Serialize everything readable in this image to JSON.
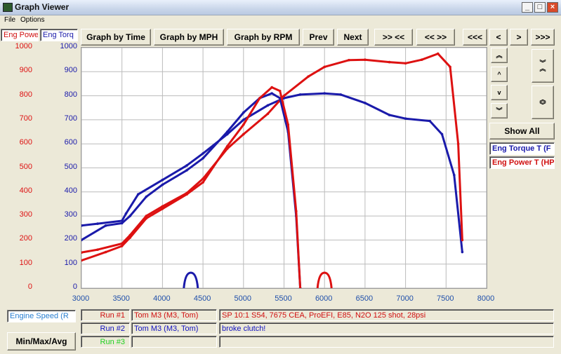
{
  "window": {
    "title": "Graph Viewer",
    "minimize": "_",
    "maximize": "□",
    "close": "×"
  },
  "menu": {
    "file": "File",
    "options": "Options"
  },
  "left_tabs": {
    "power": "Eng Powe",
    "torque": "Eng Torq"
  },
  "toolbar": {
    "graph_time": "Graph by Time",
    "graph_mph": "Graph by MPH",
    "graph_rpm": "Graph by RPM",
    "prev": "Prev",
    "next": "Next",
    "zoom_in": ">> <<",
    "zoom_out": "<< >>",
    "far_left": "<<<",
    "left": "<",
    "right": ">",
    "far_right": ">>>"
  },
  "right_panel": {
    "show_all": "Show All",
    "legend_torque": "Eng Torque T (F",
    "legend_power": "Eng Power T (HP"
  },
  "bottom": {
    "x_channel": "Engine Speed (R",
    "min_max_avg": "Min/Max/Avg",
    "runs": [
      {
        "label": "Run #1",
        "name": "Tom M3 (M3, Tom)",
        "note": "SP 10:1 S54, 7675 CEA, ProEFI, E85, N2O 125 shot, 28psi",
        "color": "#d01010"
      },
      {
        "label": "Run #2",
        "name": "Tom M3 (M3, Tom)",
        "note": "broke clutch!",
        "color": "#1010c0"
      },
      {
        "label": "Run #3",
        "name": "",
        "note": "",
        "color": "#20d020"
      }
    ]
  },
  "colors": {
    "power": "#dd1111",
    "torque": "#1a1aaa",
    "axis_x": "#1f4faa"
  },
  "chart_data": {
    "type": "scatter",
    "xlabel": "",
    "ylabel": "",
    "xlim": [
      3000,
      8000
    ],
    "ylim_power": [
      0,
      1000
    ],
    "ylim_torque": [
      0,
      1000
    ],
    "x_ticks": [
      "3000",
      "3500",
      "4000",
      "4500",
      "5000",
      "5500",
      "6000",
      "6500",
      "7000",
      "7500",
      "8000"
    ],
    "y_ticks_power": [
      "1000",
      "900",
      "800",
      "700",
      "600",
      "500",
      "400",
      "300",
      "200",
      "100",
      "0"
    ],
    "y_ticks_torque": [
      "1000",
      "900",
      "800",
      "700",
      "600",
      "500",
      "400",
      "300",
      "200",
      "100",
      "0"
    ],
    "grid": true,
    "series": [
      {
        "name": "Eng Torque T (F",
        "color": "#1a1aaa",
        "run": 1,
        "x": [
          3000,
          3200,
          3500,
          3550,
          3700,
          4000,
          4300,
          4500,
          4800,
          5000,
          5300,
          5500,
          5700,
          6000,
          6200,
          6500,
          6800,
          7000,
          7300,
          7450,
          7600,
          7700
        ],
        "y": [
          260,
          268,
          280,
          310,
          390,
          450,
          510,
          560,
          640,
          700,
          760,
          790,
          805,
          810,
          805,
          770,
          720,
          705,
          695,
          640,
          470,
          150
        ]
      },
      {
        "name": "Eng Power T (HP",
        "color": "#dd1111",
        "run": 1,
        "x": [
          3000,
          3200,
          3500,
          3600,
          3800,
          4000,
          4300,
          4500,
          4800,
          5000,
          5300,
          5500,
          5800,
          6000,
          6300,
          6500,
          6800,
          7000,
          7200,
          7400,
          7550,
          7650,
          7700
        ],
        "y": [
          148,
          160,
          185,
          220,
          300,
          340,
          395,
          455,
          580,
          640,
          725,
          800,
          880,
          920,
          948,
          950,
          940,
          935,
          950,
          975,
          920,
          600,
          200
        ]
      },
      {
        "name": "Eng Torque T (F",
        "color": "#1a1aaa",
        "run": 2,
        "x": [
          3000,
          3300,
          3500,
          3600,
          3800,
          4000,
          4300,
          4500,
          4800,
          5000,
          5200,
          5350,
          5450,
          5550,
          5650,
          5700
        ],
        "y": [
          200,
          260,
          270,
          300,
          380,
          430,
          490,
          540,
          650,
          730,
          790,
          810,
          790,
          650,
          300,
          0
        ]
      },
      {
        "name": "Eng Power T (HP",
        "color": "#dd1111",
        "run": 2,
        "x": [
          3000,
          3300,
          3500,
          3600,
          3800,
          4000,
          4300,
          4500,
          4800,
          5000,
          5200,
          5350,
          5450,
          5550,
          5650,
          5700
        ],
        "y": [
          115,
          150,
          175,
          210,
          290,
          330,
          390,
          440,
          590,
          680,
          790,
          835,
          820,
          680,
          320,
          0
        ]
      }
    ]
  }
}
